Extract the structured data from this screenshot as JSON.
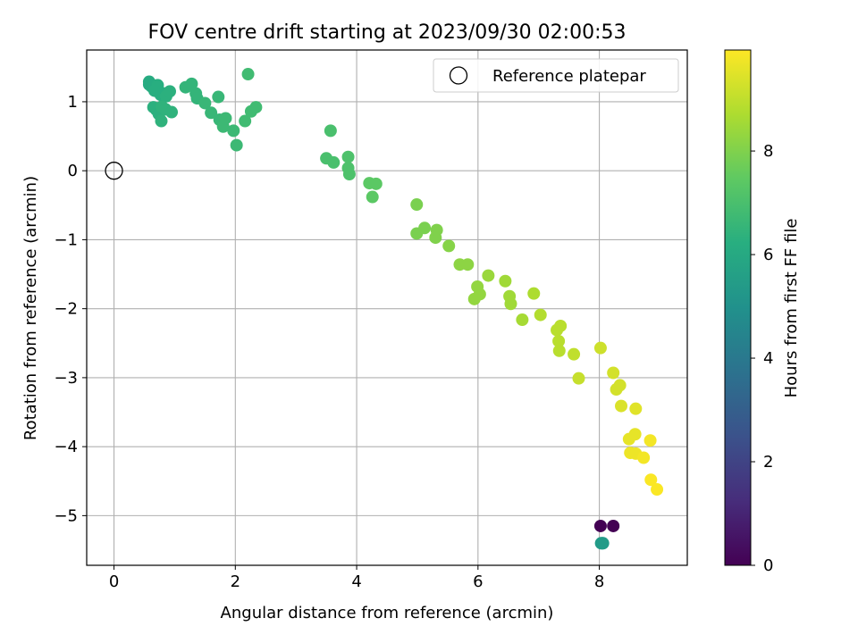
{
  "chart_data": {
    "type": "scatter",
    "title": "FOV centre drift starting at 2023/09/30 02:00:53",
    "xlabel": "Angular distance from reference (arcmin)",
    "ylabel": "Rotation from reference (arcmin)",
    "xlim": [
      -0.45,
      9.45
    ],
    "ylim": [
      -5.72,
      1.75
    ],
    "xticks": [
      0,
      2,
      4,
      6,
      8
    ],
    "xtick_labels": [
      "0",
      "2",
      "4",
      "6",
      "8"
    ],
    "yticks": [
      1,
      0,
      -1,
      -2,
      -3,
      -4,
      -5
    ],
    "ytick_labels": [
      "1",
      "0",
      "−1",
      "−2",
      "−3",
      "−4",
      "−5"
    ],
    "grid": true,
    "colormap": "viridis",
    "colorbar": {
      "label": "Hours from first FF file",
      "range": [
        0,
        9.95
      ],
      "ticks": [
        0,
        2,
        4,
        6,
        8
      ],
      "tick_labels": [
        "0",
        "2",
        "4",
        "6",
        "8"
      ]
    },
    "legend": {
      "position": "top-right",
      "entries": [
        {
          "label": "Reference platepar",
          "marker": "open-circle",
          "x": 0,
          "y": 0
        }
      ]
    },
    "points": [
      {
        "x": 0.58,
        "y": 1.25,
        "t": 6.1
      },
      {
        "x": 0.58,
        "y": 1.29,
        "t": 6.1
      },
      {
        "x": 0.62,
        "y": 1.22,
        "t": 6.1
      },
      {
        "x": 0.72,
        "y": 1.24,
        "t": 6.2
      },
      {
        "x": 0.67,
        "y": 1.16,
        "t": 6.2
      },
      {
        "x": 0.77,
        "y": 1.1,
        "t": 6.2
      },
      {
        "x": 0.82,
        "y": 1.12,
        "t": 6.2
      },
      {
        "x": 0.86,
        "y": 1.08,
        "t": 6.3
      },
      {
        "x": 0.92,
        "y": 1.15,
        "t": 6.3
      },
      {
        "x": 0.65,
        "y": 0.92,
        "t": 6.3
      },
      {
        "x": 0.7,
        "y": 0.88,
        "t": 6.3
      },
      {
        "x": 0.74,
        "y": 0.82,
        "t": 6.3
      },
      {
        "x": 0.79,
        "y": 0.93,
        "t": 6.4
      },
      {
        "x": 0.85,
        "y": 0.89,
        "t": 6.4
      },
      {
        "x": 0.78,
        "y": 0.72,
        "t": 6.4
      },
      {
        "x": 0.95,
        "y": 0.85,
        "t": 6.4
      },
      {
        "x": 1.18,
        "y": 1.21,
        "t": 6.5
      },
      {
        "x": 1.28,
        "y": 1.26,
        "t": 6.5
      },
      {
        "x": 1.35,
        "y": 1.12,
        "t": 6.5
      },
      {
        "x": 1.37,
        "y": 1.05,
        "t": 6.5
      },
      {
        "x": 1.5,
        "y": 0.98,
        "t": 6.6
      },
      {
        "x": 1.6,
        "y": 0.84,
        "t": 6.6
      },
      {
        "x": 1.72,
        "y": 1.07,
        "t": 6.6
      },
      {
        "x": 1.74,
        "y": 0.74,
        "t": 6.6
      },
      {
        "x": 1.8,
        "y": 0.64,
        "t": 6.7
      },
      {
        "x": 1.84,
        "y": 0.76,
        "t": 6.7
      },
      {
        "x": 1.97,
        "y": 0.58,
        "t": 6.7
      },
      {
        "x": 2.02,
        "y": 0.37,
        "t": 6.7
      },
      {
        "x": 2.16,
        "y": 0.72,
        "t": 6.8
      },
      {
        "x": 2.26,
        "y": 0.86,
        "t": 6.8
      },
      {
        "x": 2.34,
        "y": 0.92,
        "t": 6.8
      },
      {
        "x": 2.21,
        "y": 1.4,
        "t": 6.8
      },
      {
        "x": 3.5,
        "y": 0.18,
        "t": 7.0
      },
      {
        "x": 3.57,
        "y": 0.58,
        "t": 7.0
      },
      {
        "x": 3.62,
        "y": 0.12,
        "t": 7.0
      },
      {
        "x": 3.86,
        "y": 0.2,
        "t": 7.1
      },
      {
        "x": 3.86,
        "y": 0.04,
        "t": 7.1
      },
      {
        "x": 3.88,
        "y": -0.05,
        "t": 7.1
      },
      {
        "x": 4.21,
        "y": -0.18,
        "t": 7.4
      },
      {
        "x": 4.32,
        "y": -0.19,
        "t": 7.4
      },
      {
        "x": 4.26,
        "y": -0.38,
        "t": 7.4
      },
      {
        "x": 4.99,
        "y": -0.49,
        "t": 7.9
      },
      {
        "x": 4.99,
        "y": -0.91,
        "t": 7.9
      },
      {
        "x": 5.12,
        "y": -0.83,
        "t": 7.9
      },
      {
        "x": 5.3,
        "y": -0.97,
        "t": 8.0
      },
      {
        "x": 5.32,
        "y": -0.86,
        "t": 8.0
      },
      {
        "x": 5.52,
        "y": -1.09,
        "t": 8.1
      },
      {
        "x": 5.7,
        "y": -1.36,
        "t": 8.2
      },
      {
        "x": 5.83,
        "y": -1.36,
        "t": 8.2
      },
      {
        "x": 5.99,
        "y": -1.68,
        "t": 8.3
      },
      {
        "x": 6.03,
        "y": -1.79,
        "t": 8.3
      },
      {
        "x": 5.94,
        "y": -1.86,
        "t": 8.3
      },
      {
        "x": 6.17,
        "y": -1.52,
        "t": 8.4
      },
      {
        "x": 6.45,
        "y": -1.6,
        "t": 8.5
      },
      {
        "x": 6.52,
        "y": -1.82,
        "t": 8.5
      },
      {
        "x": 6.54,
        "y": -1.93,
        "t": 8.5
      },
      {
        "x": 6.73,
        "y": -2.16,
        "t": 8.6
      },
      {
        "x": 6.92,
        "y": -1.78,
        "t": 8.7
      },
      {
        "x": 7.03,
        "y": -2.09,
        "t": 8.8
      },
      {
        "x": 7.3,
        "y": -2.31,
        "t": 8.9
      },
      {
        "x": 7.36,
        "y": -2.25,
        "t": 8.9
      },
      {
        "x": 7.33,
        "y": -2.47,
        "t": 8.9
      },
      {
        "x": 7.34,
        "y": -2.61,
        "t": 8.9
      },
      {
        "x": 7.58,
        "y": -2.66,
        "t": 9.0
      },
      {
        "x": 7.66,
        "y": -3.01,
        "t": 9.1
      },
      {
        "x": 8.02,
        "y": -2.57,
        "t": 9.2
      },
      {
        "x": 8.23,
        "y": -2.93,
        "t": 9.3
      },
      {
        "x": 8.28,
        "y": -3.17,
        "t": 9.3
      },
      {
        "x": 8.34,
        "y": -3.11,
        "t": 9.3
      },
      {
        "x": 8.36,
        "y": -3.41,
        "t": 9.4
      },
      {
        "x": 8.6,
        "y": -3.45,
        "t": 9.5
      },
      {
        "x": 8.49,
        "y": -3.89,
        "t": 9.6
      },
      {
        "x": 8.59,
        "y": -3.82,
        "t": 9.6
      },
      {
        "x": 8.51,
        "y": -4.09,
        "t": 9.7
      },
      {
        "x": 8.6,
        "y": -4.1,
        "t": 9.7
      },
      {
        "x": 8.73,
        "y": -4.16,
        "t": 9.8
      },
      {
        "x": 8.84,
        "y": -3.91,
        "t": 9.8
      },
      {
        "x": 8.85,
        "y": -4.48,
        "t": 9.9
      },
      {
        "x": 8.95,
        "y": -4.62,
        "t": 9.9
      },
      {
        "x": 8.02,
        "y": -5.15,
        "t": 0.0
      },
      {
        "x": 8.23,
        "y": -5.15,
        "t": 0.0
      },
      {
        "x": 8.05,
        "y": -5.4,
        "t": 5.4
      },
      {
        "x": 8.03,
        "y": -5.4,
        "t": 5.4
      },
      {
        "x": 8.06,
        "y": -5.4,
        "t": 5.4
      }
    ]
  }
}
